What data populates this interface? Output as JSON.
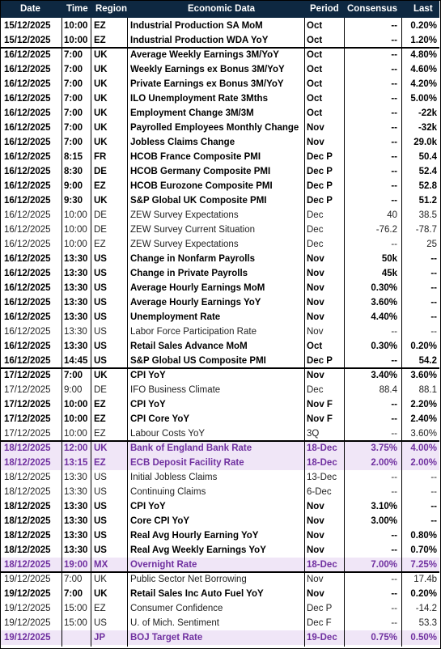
{
  "headers": {
    "date": "Date",
    "time": "Time",
    "region": "Region",
    "data": "Economic Data",
    "period": "Period",
    "consensus": "Consensus",
    "last": "Last"
  },
  "rows": [
    {
      "date": "15/12/2025",
      "time": "10:00",
      "region": "EZ",
      "data": "Industrial Production SA MoM",
      "period": "Oct",
      "consensus": "--",
      "last": "0.20%",
      "style": "b"
    },
    {
      "date": "15/12/2025",
      "time": "10:00",
      "region": "EZ",
      "data": "Industrial Production WDA YoY",
      "period": "Oct",
      "consensus": "--",
      "last": "1.20%",
      "style": "b"
    },
    {
      "date": "16/12/2025",
      "time": "7:00",
      "region": "UK",
      "data": "Average Weekly Earnings 3M/YoY",
      "period": "Oct",
      "consensus": "--",
      "last": "4.80%",
      "style": "b"
    },
    {
      "date": "16/12/2025",
      "time": "7:00",
      "region": "UK",
      "data": "Weekly Earnings ex Bonus 3M/YoY",
      "period": "Oct",
      "consensus": "--",
      "last": "4.60%",
      "style": "b"
    },
    {
      "date": "16/12/2025",
      "time": "7:00",
      "region": "UK",
      "data": "Private Earnings ex Bonus 3M/YoY",
      "period": "Oct",
      "consensus": "--",
      "last": "4.20%",
      "style": "b"
    },
    {
      "date": "16/12/2025",
      "time": "7:00",
      "region": "UK",
      "data": "ILO Unemployment Rate 3Mths",
      "period": "Oct",
      "consensus": "--",
      "last": "5.00%",
      "style": "b"
    },
    {
      "date": "16/12/2025",
      "time": "7:00",
      "region": "UK",
      "data": "Employment Change 3M/3M",
      "period": "Oct",
      "consensus": "--",
      "last": "-22k",
      "style": "b"
    },
    {
      "date": "16/12/2025",
      "time": "7:00",
      "region": "UK",
      "data": "Payrolled Employees Monthly Change",
      "period": "Nov",
      "consensus": "--",
      "last": "-32k",
      "style": "b"
    },
    {
      "date": "16/12/2025",
      "time": "7:00",
      "region": "UK",
      "data": "Jobless Claims Change",
      "period": "Nov",
      "consensus": "--",
      "last": "29.0k",
      "style": "b"
    },
    {
      "date": "16/12/2025",
      "time": "8:15",
      "region": "FR",
      "data": "HCOB France Composite PMI",
      "period": "Dec P",
      "consensus": "--",
      "last": "50.4",
      "style": "b"
    },
    {
      "date": "16/12/2025",
      "time": "8:30",
      "region": "DE",
      "data": "HCOB Germany Composite PMI",
      "period": "Dec P",
      "consensus": "--",
      "last": "52.4",
      "style": "b"
    },
    {
      "date": "16/12/2025",
      "time": "9:00",
      "region": "EZ",
      "data": "HCOB Eurozone Composite PMI",
      "period": "Dec P",
      "consensus": "--",
      "last": "52.8",
      "style": "b"
    },
    {
      "date": "16/12/2025",
      "time": "9:30",
      "region": "UK",
      "data": "S&P Global UK Composite PMI",
      "period": "Dec P",
      "consensus": "--",
      "last": "51.2",
      "style": "b"
    },
    {
      "date": "16/12/2025",
      "time": "10:00",
      "region": "DE",
      "data": "ZEW Survey Expectations",
      "period": "Dec",
      "consensus": "40",
      "last": "38.5",
      "style": "n"
    },
    {
      "date": "16/12/2025",
      "time": "10:00",
      "region": "DE",
      "data": "ZEW Survey Current Situation",
      "period": "Dec",
      "consensus": "-76.2",
      "last": "-78.7",
      "style": "n"
    },
    {
      "date": "16/12/2025",
      "time": "10:00",
      "region": "EZ",
      "data": "ZEW Survey Expectations",
      "period": "Dec",
      "consensus": "--",
      "last": "25",
      "style": "n"
    },
    {
      "date": "16/12/2025",
      "time": "13:30",
      "region": "US",
      "data": "Change in Nonfarm Payrolls",
      "period": "Nov",
      "consensus": "50k",
      "last": "--",
      "style": "b"
    },
    {
      "date": "16/12/2025",
      "time": "13:30",
      "region": "US",
      "data": "Change in Private Payrolls",
      "period": "Nov",
      "consensus": "45k",
      "last": "--",
      "style": "b"
    },
    {
      "date": "16/12/2025",
      "time": "13:30",
      "region": "US",
      "data": "Average Hourly Earnings MoM",
      "period": "Nov",
      "consensus": "0.30%",
      "last": "--",
      "style": "b"
    },
    {
      "date": "16/12/2025",
      "time": "13:30",
      "region": "US",
      "data": "Average Hourly Earnings YoY",
      "period": "Nov",
      "consensus": "3.60%",
      "last": "--",
      "style": "b"
    },
    {
      "date": "16/12/2025",
      "time": "13:30",
      "region": "US",
      "data": "Unemployment Rate",
      "period": "Nov",
      "consensus": "4.40%",
      "last": "--",
      "style": "b"
    },
    {
      "date": "16/12/2025",
      "time": "13:30",
      "region": "US",
      "data": "Labor Force Participation Rate",
      "period": "Nov",
      "consensus": "--",
      "last": "--",
      "style": "n"
    },
    {
      "date": "16/12/2025",
      "time": "13:30",
      "region": "US",
      "data": "Retail Sales Advance MoM",
      "period": "Oct",
      "consensus": "0.30%",
      "last": "0.20%",
      "style": "b"
    },
    {
      "date": "16/12/2025",
      "time": "14:45",
      "region": "US",
      "data": "S&P Global US Composite PMI",
      "period": "Dec P",
      "consensus": "--",
      "last": "54.2",
      "style": "b"
    },
    {
      "date": "17/12/2025",
      "time": "7:00",
      "region": "UK",
      "data": "CPI YoY",
      "period": "Nov",
      "consensus": "3.40%",
      "last": "3.60%",
      "style": "b"
    },
    {
      "date": "17/12/2025",
      "time": "9:00",
      "region": "DE",
      "data": "IFO Business Climate",
      "period": "Dec",
      "consensus": "88.4",
      "last": "88.1",
      "style": "n"
    },
    {
      "date": "17/12/2025",
      "time": "10:00",
      "region": "EZ",
      "data": "CPI YoY",
      "period": "Nov F",
      "consensus": "--",
      "last": "2.20%",
      "style": "b"
    },
    {
      "date": "17/12/2025",
      "time": "10:00",
      "region": "EZ",
      "data": "CPI Core YoY",
      "period": "Nov F",
      "consensus": "--",
      "last": "2.40%",
      "style": "b"
    },
    {
      "date": "17/12/2025",
      "time": "10:00",
      "region": "EZ",
      "data": "Labour Costs YoY",
      "period": "3Q",
      "consensus": "--",
      "last": "3.60%",
      "style": "n"
    },
    {
      "date": "18/12/2025",
      "time": "12:00",
      "region": "UK",
      "data": "Bank of England Bank Rate",
      "period": "18-Dec",
      "consensus": "3.75%",
      "last": "4.00%",
      "style": "p"
    },
    {
      "date": "18/12/2025",
      "time": "13:15",
      "region": "EZ",
      "data": "ECB Deposit Facility Rate",
      "period": "18-Dec",
      "consensus": "2.00%",
      "last": "2.00%",
      "style": "p"
    },
    {
      "date": "18/12/2025",
      "time": "13:30",
      "region": "US",
      "data": "Initial Jobless Claims",
      "period": "13-Dec",
      "consensus": "--",
      "last": "--",
      "style": "n"
    },
    {
      "date": "18/12/2025",
      "time": "13:30",
      "region": "US",
      "data": "Continuing Claims",
      "period": "6-Dec",
      "consensus": "--",
      "last": "--",
      "style": "n"
    },
    {
      "date": "18/12/2025",
      "time": "13:30",
      "region": "US",
      "data": "CPI YoY",
      "period": "Nov",
      "consensus": "3.10%",
      "last": "--",
      "style": "b"
    },
    {
      "date": "18/12/2025",
      "time": "13:30",
      "region": "US",
      "data": "Core CPI YoY",
      "period": "Nov",
      "consensus": "3.00%",
      "last": "--",
      "style": "b"
    },
    {
      "date": "18/12/2025",
      "time": "13:30",
      "region": "US",
      "data": "Real Avg Hourly Earning YoY",
      "period": "Nov",
      "consensus": "--",
      "last": "0.80%",
      "style": "b"
    },
    {
      "date": "18/12/2025",
      "time": "13:30",
      "region": "US",
      "data": "Real Avg Weekly Earnings YoY",
      "period": "Nov",
      "consensus": "--",
      "last": "0.70%",
      "style": "b"
    },
    {
      "date": "18/12/2025",
      "time": "19:00",
      "region": "MX",
      "data": "Overnight Rate",
      "period": "18-Dec",
      "consensus": "7.00%",
      "last": "7.25%",
      "style": "p"
    },
    {
      "date": "19/12/2025",
      "time": "7:00",
      "region": "UK",
      "data": "Public Sector Net Borrowing",
      "period": "Nov",
      "consensus": "--",
      "last": "17.4b",
      "style": "n"
    },
    {
      "date": "19/12/2025",
      "time": "7:00",
      "region": "UK",
      "data": "Retail Sales Inc Auto Fuel YoY",
      "period": "Nov",
      "consensus": "--",
      "last": "0.20%",
      "style": "b"
    },
    {
      "date": "19/12/2025",
      "time": "15:00",
      "region": "EZ",
      "data": "Consumer Confidence",
      "period": "Dec P",
      "consensus": "--",
      "last": "-14.2",
      "style": "n"
    },
    {
      "date": "19/12/2025",
      "time": "15:00",
      "region": "US",
      "data": "U. of Mich. Sentiment",
      "period": "Dec F",
      "consensus": "--",
      "last": "53.3",
      "style": "n"
    },
    {
      "date": "19/12/2025",
      "time": "",
      "region": "JP",
      "data": "BOJ Target Rate",
      "period": "19-Dec",
      "consensus": "0.75%",
      "last": "0.50%",
      "style": "p"
    }
  ]
}
